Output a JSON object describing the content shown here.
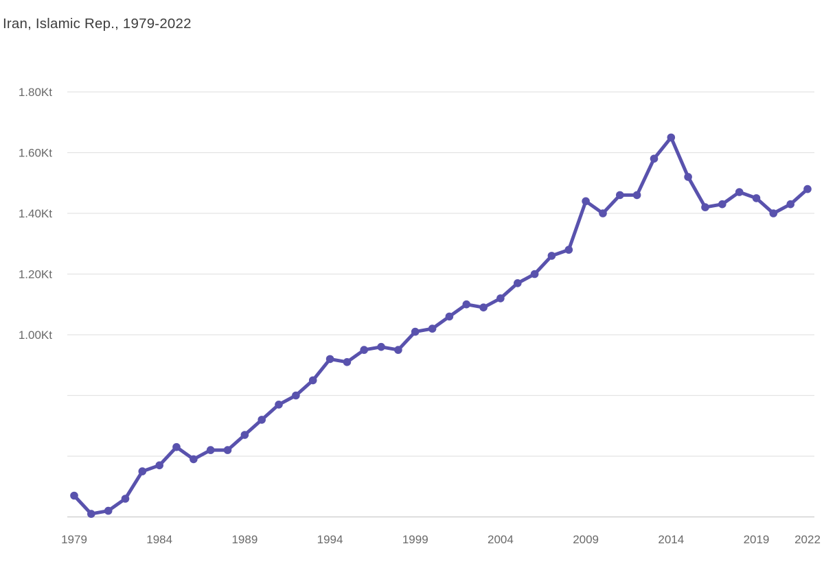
{
  "title": "Iran, Islamic Rep., 1979-2022",
  "colors": {
    "background": "#ffffff",
    "line": "#5952ad",
    "point": "#5952ad",
    "gridline": "#e3e3e3",
    "axis_line": "#d2d2d2",
    "title_text": "#3d3d3d",
    "tick_text": "#696969"
  },
  "chart_data": {
    "type": "line",
    "title": "Iran, Islamic Rep., 1979-2022",
    "series_name": "Iran, Islamic Rep.",
    "unit": "Kt",
    "xlabel": "",
    "ylabel": "",
    "grid": true,
    "legend_position": "none",
    "xlim": [
      1979,
      2022
    ],
    "ylim": [
      0.4,
      1.87
    ],
    "x": [
      1979,
      1980,
      1981,
      1982,
      1983,
      1984,
      1985,
      1986,
      1987,
      1988,
      1989,
      1990,
      1991,
      1992,
      1993,
      1994,
      1995,
      1996,
      1997,
      1998,
      1999,
      2000,
      2001,
      2002,
      2003,
      2004,
      2005,
      2006,
      2007,
      2008,
      2009,
      2010,
      2011,
      2012,
      2013,
      2014,
      2015,
      2016,
      2017,
      2018,
      2019,
      2020,
      2021,
      2022
    ],
    "values": [
      0.47,
      0.41,
      0.42,
      0.46,
      0.55,
      0.57,
      0.63,
      0.59,
      0.62,
      0.62,
      0.67,
      0.72,
      0.77,
      0.8,
      0.85,
      0.92,
      0.91,
      0.95,
      0.96,
      0.95,
      1.01,
      1.02,
      1.06,
      1.1,
      1.09,
      1.12,
      1.17,
      1.2,
      1.26,
      1.28,
      1.44,
      1.4,
      1.46,
      1.46,
      1.58,
      1.65,
      1.52,
      1.42,
      1.43,
      1.47,
      1.45,
      1.4,
      1.43,
      1.48
    ],
    "y_gridlines": [
      {
        "value": 1.8,
        "label": "1.80Kt"
      },
      {
        "value": 1.6,
        "label": "1.60Kt"
      },
      {
        "value": 1.4,
        "label": "1.40Kt"
      },
      {
        "value": 1.2,
        "label": "1.20Kt"
      },
      {
        "value": 1.0,
        "label": "1.00Kt"
      },
      {
        "value": 0.8,
        "label": ""
      },
      {
        "value": 0.6,
        "label": ""
      }
    ],
    "baseline_value": 0.4,
    "x_ticks": [
      {
        "value": 1979,
        "label": "1979"
      },
      {
        "value": 1984,
        "label": "1984"
      },
      {
        "value": 1989,
        "label": "1989"
      },
      {
        "value": 1994,
        "label": "1994"
      },
      {
        "value": 1999,
        "label": "1999"
      },
      {
        "value": 2004,
        "label": "2004"
      },
      {
        "value": 2009,
        "label": "2009"
      },
      {
        "value": 2014,
        "label": "2014"
      },
      {
        "value": 2019,
        "label": "2019"
      },
      {
        "value": 2022,
        "label": "2022"
      }
    ]
  }
}
